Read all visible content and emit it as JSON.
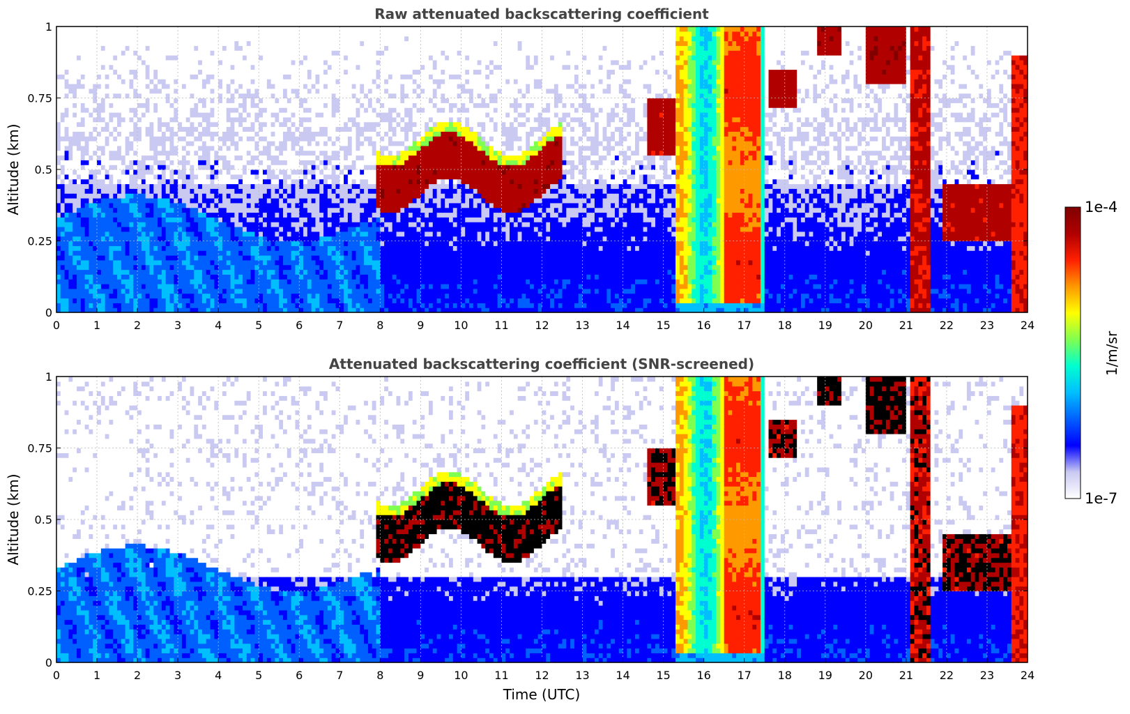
{
  "colors": {
    "colormap": [
      "#ffffff",
      "#c9c9f2",
      "#0000ff",
      "#0060ff",
      "#00bfff",
      "#00ffd0",
      "#7fff50",
      "#ffff00",
      "#ff9900",
      "#ff2000",
      "#b00000",
      "#800000"
    ],
    "saturated_screened": "#000000",
    "title_text": "#444444",
    "grid": "#b8b8b8"
  },
  "chart_data": [
    {
      "type": "heatmap",
      "title": "Raw attenuated backscattering coefficient",
      "xlabel": "",
      "ylabel": "Altitude (km)",
      "xlim": [
        0,
        24
      ],
      "ylim": [
        0,
        1
      ],
      "xticks": [
        "0",
        "1",
        "2",
        "3",
        "4",
        "5",
        "6",
        "7",
        "8",
        "9",
        "10",
        "11",
        "12",
        "13",
        "14",
        "15",
        "16",
        "17",
        "18",
        "19",
        "20",
        "21",
        "22",
        "23",
        "24"
      ],
      "yticks": [
        "0",
        "0.25",
        "0.5",
        "0.75",
        "1"
      ],
      "grid": true,
      "screened": false
    },
    {
      "type": "heatmap",
      "title": "Attenuated backscattering coefficient (SNR-screened)",
      "xlabel": "Time (UTC)",
      "ylabel": "Altitude (km)",
      "xlim": [
        0,
        24
      ],
      "ylim": [
        0,
        1
      ],
      "xticks": [
        "0",
        "1",
        "2",
        "3",
        "4",
        "5",
        "6",
        "7",
        "8",
        "9",
        "10",
        "11",
        "12",
        "13",
        "14",
        "15",
        "16",
        "17",
        "18",
        "19",
        "20",
        "21",
        "22",
        "23",
        "24"
      ],
      "yticks": [
        "0",
        "0.25",
        "0.5",
        "0.75",
        "1"
      ],
      "grid": true,
      "screened": true
    }
  ],
  "colorbar": {
    "label": "1/m/sr",
    "max_label": "1e-4",
    "min_label": "1e-7",
    "scale": "log",
    "range": [
      1e-07,
      0.0001
    ]
  }
}
